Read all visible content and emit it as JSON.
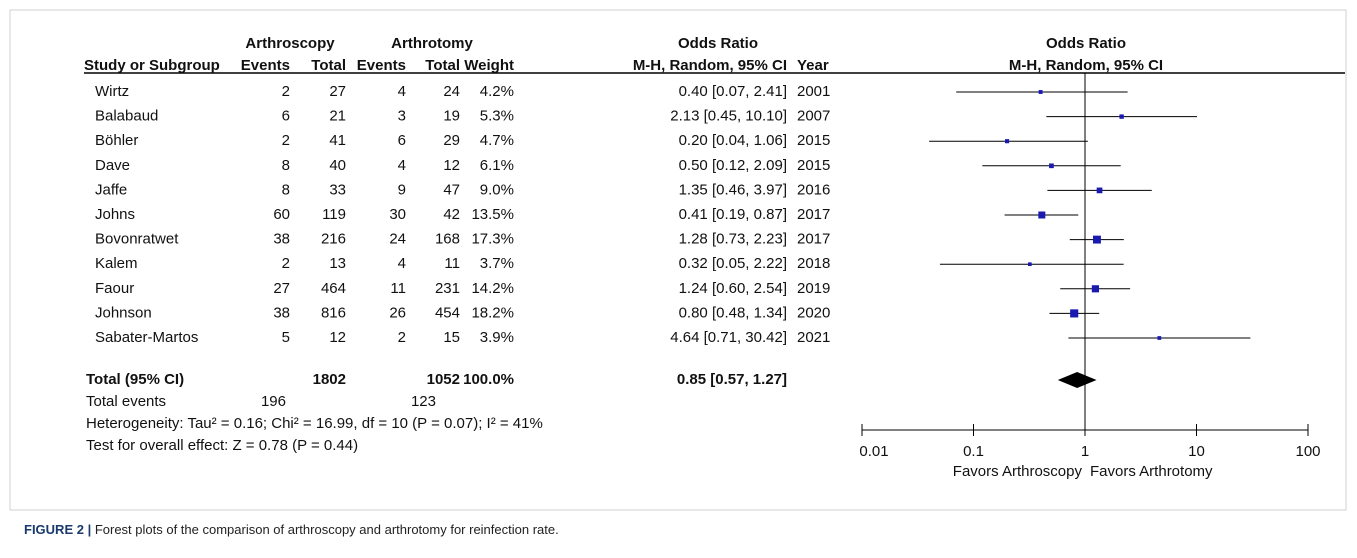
{
  "chart_data": {
    "type": "forest",
    "group_headers": [
      "Arthroscopy",
      "Arthrotomy",
      "Odds Ratio",
      "Odds Ratio"
    ],
    "columns": [
      "Study or Subgroup",
      "Events",
      "Total",
      "Events",
      "Total",
      "Weight",
      "M-H, Random, 95% CI",
      "Year",
      "M-H, Random, 95% CI"
    ],
    "categories": [
      "Wirtz",
      "Balabaud",
      "Böhler",
      "Dave",
      "Jaffe",
      "Johns",
      "Bovonratwet",
      "Kalem",
      "Faour",
      "Johnson",
      "Sabater-Martos"
    ],
    "events1": [
      2,
      6,
      2,
      8,
      8,
      60,
      38,
      2,
      27,
      38,
      5
    ],
    "total1": [
      27,
      21,
      41,
      40,
      33,
      119,
      216,
      13,
      464,
      816,
      12
    ],
    "events2": [
      4,
      3,
      6,
      4,
      9,
      30,
      24,
      4,
      11,
      26,
      2
    ],
    "total2": [
      24,
      19,
      29,
      12,
      47,
      42,
      168,
      11,
      231,
      454,
      15
    ],
    "weights": [
      4.2,
      5.3,
      4.7,
      6.1,
      9.0,
      13.5,
      17.3,
      3.7,
      14.2,
      18.2,
      3.9
    ],
    "weight_labels": [
      "4.2%",
      "5.3%",
      "4.7%",
      "6.1%",
      "9.0%",
      "13.5%",
      "17.3%",
      "3.7%",
      "14.2%",
      "18.2%",
      "3.9%"
    ],
    "values": [
      0.4,
      2.13,
      0.2,
      0.5,
      1.35,
      0.41,
      1.28,
      0.32,
      1.24,
      0.8,
      4.64
    ],
    "ci_low": [
      0.07,
      0.45,
      0.04,
      0.12,
      0.46,
      0.19,
      0.73,
      0.05,
      0.6,
      0.48,
      0.71
    ],
    "ci_high": [
      2.41,
      10.1,
      1.06,
      2.09,
      3.97,
      0.87,
      2.23,
      2.22,
      2.54,
      1.34,
      30.42
    ],
    "value_labels": [
      "0.40 [0.07, 2.41]",
      "2.13 [0.45, 10.10]",
      "0.20 [0.04, 1.06]",
      "0.50 [0.12, 2.09]",
      "1.35 [0.46, 3.97]",
      "0.41 [0.19, 0.87]",
      "1.28 [0.73, 2.23]",
      "0.32 [0.05, 2.22]",
      "1.24 [0.60, 2.54]",
      "0.80 [0.48, 1.34]",
      "4.64 [0.71, 30.42]"
    ],
    "years": [
      2001,
      2007,
      2015,
      2015,
      2016,
      2017,
      2017,
      2018,
      2019,
      2020,
      2021
    ],
    "total": {
      "label": "Total (95% CI)",
      "total1": 1802,
      "total2": 1052,
      "weight_label": "100.0%",
      "value": 0.85,
      "ci_low": 0.57,
      "ci_high": 1.27,
      "value_label": "0.85 [0.57, 1.27]"
    },
    "total_events": {
      "label": "Total events",
      "events1": 196,
      "events2": 123
    },
    "heterogeneity": "Heterogeneity: Tau² = 0.16; Chi² = 16.99, df = 10 (P = 0.07); I² = 41%",
    "overall_effect": "Test for overall effect: Z = 0.78 (P = 0.44)",
    "xscale": "log",
    "xlim": [
      0.01,
      100
    ],
    "xticks": [
      0.01,
      0.1,
      1,
      10,
      100
    ],
    "xlabel_left": "Favors Arthroscopy",
    "xlabel_right": "Favors Arthrotomy",
    "marker_color": "#1a1ab0",
    "diamond_color": "#000000",
    "caption": {
      "label": "FIGURE 2 |",
      "text": "Forest plots of the comparison of arthroscopy and arthrotomy for reinfection rate."
    }
  }
}
